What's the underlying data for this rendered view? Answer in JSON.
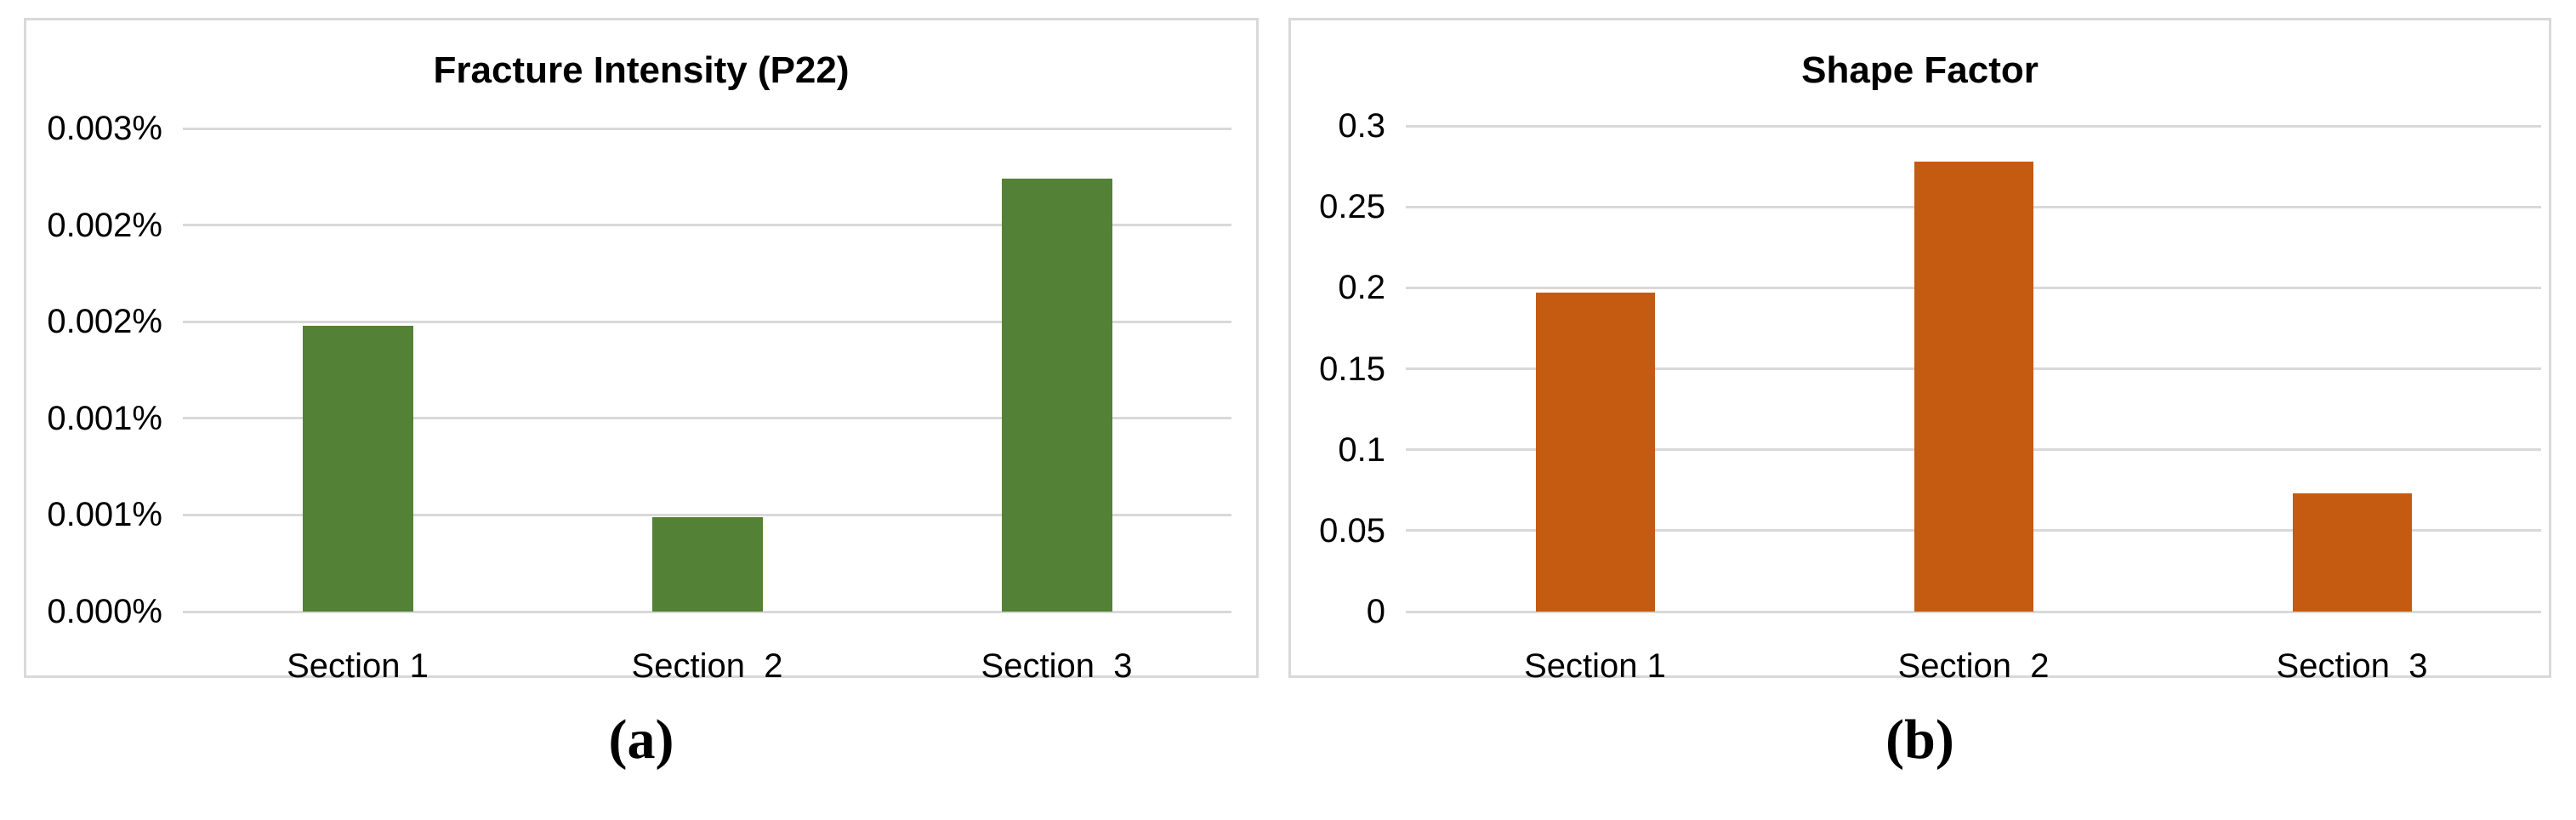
{
  "colors": {
    "grid": "#d9d9d9",
    "panel_border": "#d9d9d9",
    "text": "#000000",
    "background": "#ffffff",
    "green_bar": "#538135",
    "orange_bar": "#C55A11"
  },
  "chart_data": [
    {
      "type": "bar",
      "title": "Fracture Intensity (P22)",
      "subfigure_label": "(a)",
      "categories": [
        "Section 1",
        "Section  2",
        "Section  3"
      ],
      "values": [
        0.00148,
        0.00049,
        0.00224
      ],
      "value_unit": "percent",
      "y_tick_labels": [
        "0.003%",
        "0.002%",
        "0.002%",
        "0.001%",
        "0.001%",
        "0.000%"
      ],
      "ylim": [
        0,
        0.0025
      ],
      "xlabel": "",
      "ylabel": "",
      "grid": true,
      "legend": false,
      "bar_color": "#538135"
    },
    {
      "type": "bar",
      "title": "Shape Factor",
      "subfigure_label": "(b)",
      "categories": [
        "Section 1",
        "Section  2",
        "Section  3"
      ],
      "values": [
        0.197,
        0.278,
        0.073
      ],
      "value_unit": "ratio",
      "y_tick_labels": [
        "0.3",
        "0.25",
        "0.2",
        "0.15",
        "0.1",
        "0.05",
        "0"
      ],
      "ylim": [
        0,
        0.3
      ],
      "xlabel": "",
      "ylabel": "",
      "grid": true,
      "legend": false,
      "bar_color": "#C55A11"
    }
  ]
}
